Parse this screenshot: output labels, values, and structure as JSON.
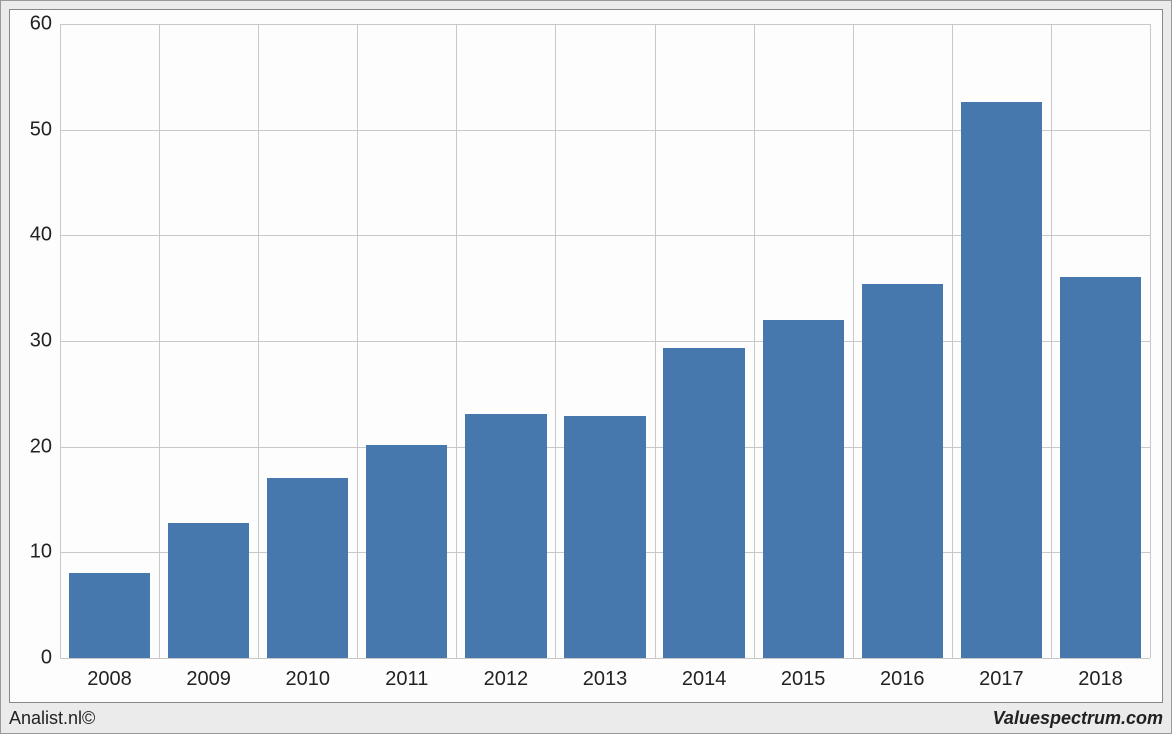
{
  "chart": {
    "type": "bar",
    "categories": [
      "2008",
      "2009",
      "2010",
      "2011",
      "2012",
      "2013",
      "2014",
      "2015",
      "2016",
      "2017",
      "2018"
    ],
    "values": [
      8,
      12.8,
      17,
      20.2,
      23.1,
      22.9,
      29.3,
      32,
      35.4,
      52.6,
      36.1
    ],
    "bar_color": "#4678ad",
    "background_color": "#fdfdfd",
    "outer_background": "#ebebeb",
    "grid_color": "#c8c8c8",
    "border_color": "#888888",
    "ylim": [
      0,
      60
    ],
    "ytick_step": 10,
    "bar_width_ratio": 0.82,
    "tick_fontsize": 20,
    "tick_color": "#222222"
  },
  "footer": {
    "left": "Analist.nl©",
    "right": "Valuespectrum.com"
  }
}
